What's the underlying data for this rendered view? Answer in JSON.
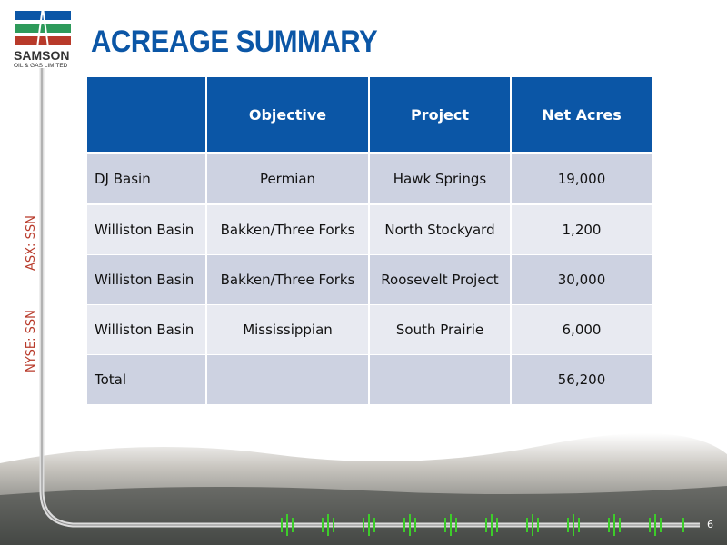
{
  "logo": {
    "name": "SAMSON",
    "subtitle": "OIL & GAS LIMITED"
  },
  "title": "ACREAGE SUMMARY",
  "side_labels": [
    "ASX: SSN",
    "NYSE: SSN"
  ],
  "table": {
    "headers": [
      "Objective",
      "Project",
      "Net Acres"
    ],
    "rows": [
      {
        "name": "DJ Basin",
        "objective": "Permian",
        "project": "Hawk Springs",
        "net_acres": "19,000"
      },
      {
        "name": "Williston Basin",
        "objective": "Bakken/Three Forks",
        "project": "North Stockyard",
        "net_acres": "1,200"
      },
      {
        "name": "Williston Basin",
        "objective": "Bakken/Three Forks",
        "project": "Roosevelt Project",
        "net_acres": "30,000"
      },
      {
        "name": "Williston Basin",
        "objective": "Mississippian",
        "project": "South Prairie",
        "net_acres": "6,000"
      }
    ],
    "total": {
      "label": "Total",
      "net_acres": "56,200"
    }
  },
  "page_number": "6"
}
